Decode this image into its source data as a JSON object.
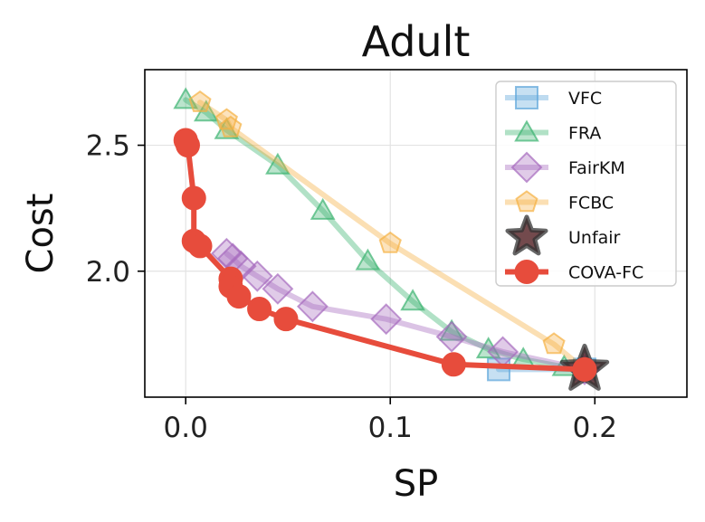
{
  "chart_data": {
    "type": "line",
    "title": "Adult",
    "xlabel": "SP",
    "ylabel": "Cost",
    "xlim": [
      -0.02,
      0.245
    ],
    "ylim": [
      1.5,
      2.8
    ],
    "xticks": [
      0.0,
      0.1,
      0.2
    ],
    "xtick_labels": [
      "0.0",
      "0.1",
      "0.2"
    ],
    "yticks": [
      2.0,
      2.5
    ],
    "ytick_labels": [
      "2.0",
      "2.5"
    ],
    "grid": true,
    "legend_position": "top-right",
    "series": [
      {
        "name": "VFC",
        "color": "#5da5da",
        "marker": "square",
        "x": [
          0.153,
          0.195
        ],
        "y": [
          1.61,
          1.61
        ]
      },
      {
        "name": "FRA",
        "color": "#3cb371",
        "marker": "triangle",
        "x": [
          0.0,
          0.01,
          0.02,
          0.045,
          0.067,
          0.089,
          0.111,
          0.13,
          0.148,
          0.165,
          0.185,
          0.195
        ],
        "y": [
          2.68,
          2.63,
          2.56,
          2.42,
          2.24,
          2.04,
          1.88,
          1.76,
          1.69,
          1.65,
          1.62,
          1.61
        ]
      },
      {
        "name": "FairKM",
        "color": "#a569bd",
        "marker": "diamond",
        "x": [
          0.02,
          0.023,
          0.027,
          0.035,
          0.045,
          0.062,
          0.098,
          0.13,
          0.155,
          0.195
        ],
        "y": [
          2.07,
          2.05,
          2.02,
          1.98,
          1.93,
          1.86,
          1.81,
          1.74,
          1.68,
          1.61
        ]
      },
      {
        "name": "FCBC",
        "color": "#f5b041",
        "marker": "pentagon",
        "x": [
          0.007,
          0.02,
          0.022,
          0.1,
          0.18,
          0.195
        ],
        "y": [
          2.67,
          2.6,
          2.57,
          2.11,
          1.71,
          1.61
        ]
      },
      {
        "name": "Unfair",
        "color": "#6e6e6e",
        "marker": "star",
        "x": [
          0.195
        ],
        "y": [
          1.61
        ]
      },
      {
        "name": "COVA-FC",
        "color": "#e74c3c",
        "marker": "circle",
        "x": [
          0.0,
          0.001,
          0.004,
          0.004,
          0.007,
          0.022,
          0.022,
          0.026,
          0.036,
          0.049,
          0.131,
          0.195
        ],
        "y": [
          2.52,
          2.5,
          2.29,
          2.12,
          2.1,
          1.97,
          1.94,
          1.9,
          1.85,
          1.81,
          1.63,
          1.61
        ]
      }
    ]
  }
}
